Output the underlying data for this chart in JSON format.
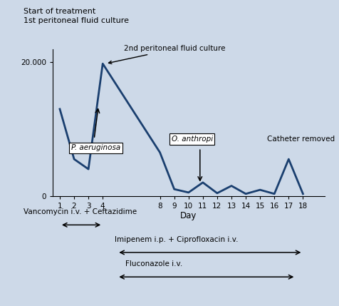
{
  "days": [
    1,
    2,
    3,
    4,
    8,
    9,
    10,
    11,
    12,
    13,
    14,
    15,
    16,
    17,
    18
  ],
  "values": [
    13000,
    5500,
    4000,
    19800,
    6500,
    1000,
    500,
    2000,
    400,
    1500,
    300,
    900,
    300,
    5500,
    300
  ],
  "yticks": [
    0,
    20000
  ],
  "ytick_labels": [
    "0",
    "20.000"
  ],
  "xtick_positions": [
    1,
    2,
    3,
    4,
    8,
    9,
    10,
    11,
    12,
    13,
    14,
    15,
    16,
    17,
    18
  ],
  "xlabel": "Day",
  "line_color": "#1a3f6f",
  "bg_color": "#cdd9e8",
  "top_label_line1": "Start of treatment",
  "top_label_line2": "1st peritoneal fluid culture",
  "annot_2nd": "2nd peritoneal fluid culture",
  "annot_p_aer": "P. aeruginosa",
  "annot_o_anth": "O. anthropi",
  "annot_cath": "Catheter removed",
  "treat1_label": "Vancomycin i.v. + Ceftazidime",
  "treat2_label": "Imipenem i.p. + Ciprofloxacin i.v.",
  "treat3_label": "Fluconazole i.v.",
  "ylim": [
    0,
    22000
  ],
  "xlim": [
    0.5,
    19.5
  ]
}
